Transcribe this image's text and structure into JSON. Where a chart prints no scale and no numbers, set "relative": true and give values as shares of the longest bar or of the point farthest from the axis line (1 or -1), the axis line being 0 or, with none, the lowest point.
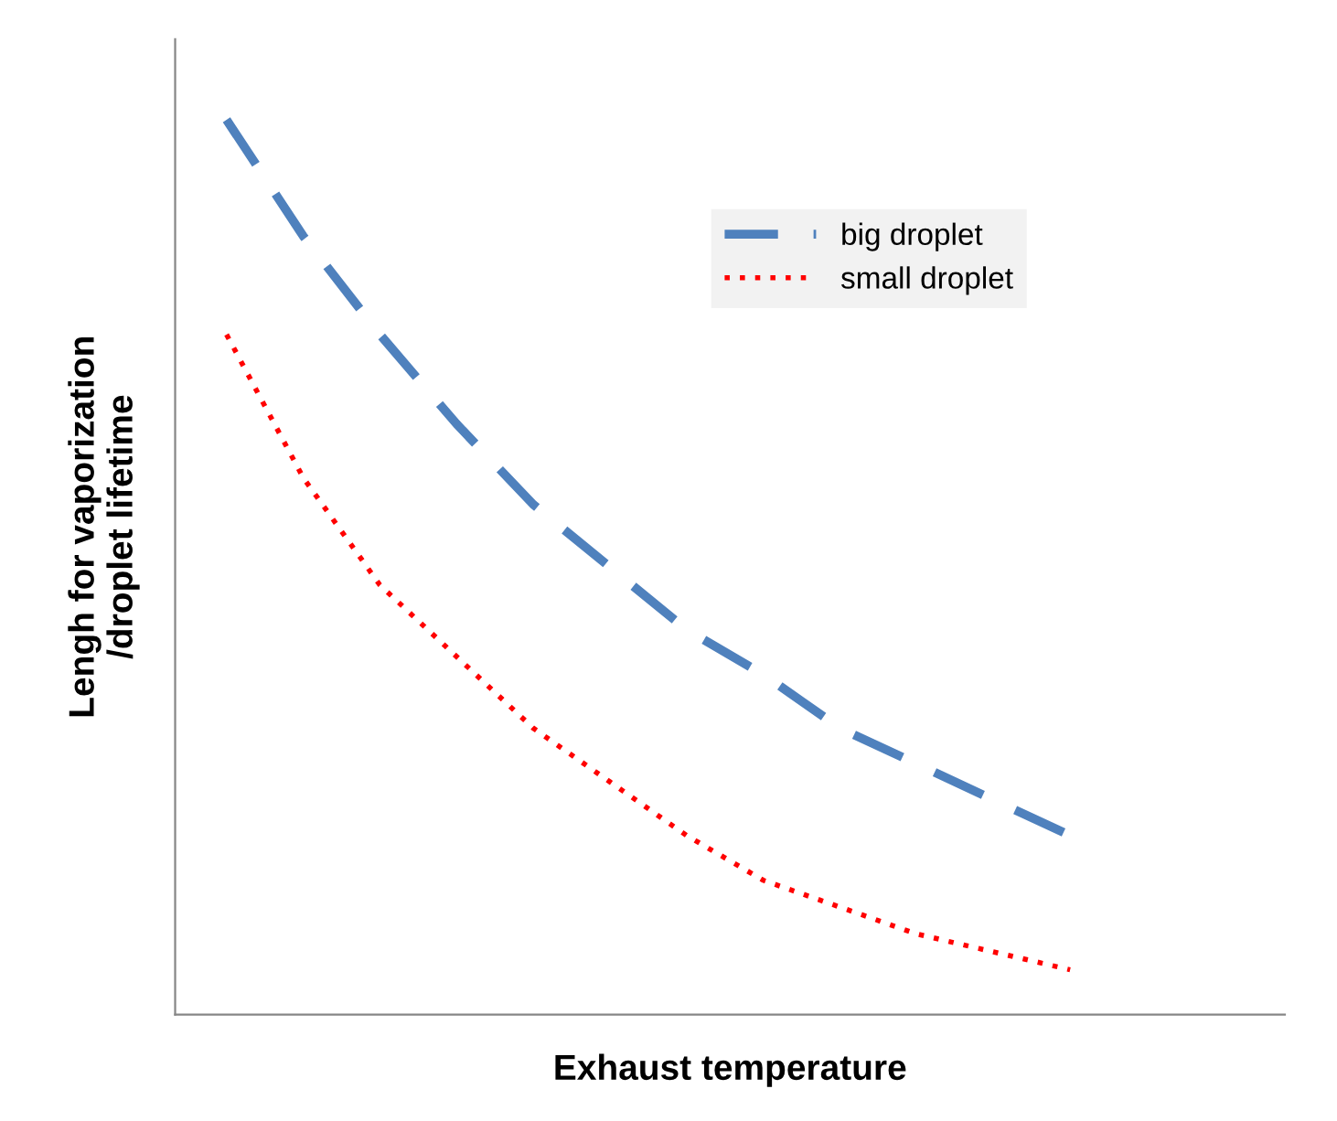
{
  "chart_data": {
    "type": "line",
    "relative": true,
    "xlabel": "Exhaust temperature",
    "ylabel": "Lengh for vaporization\n/droplet lifetime",
    "categories": [
      null,
      null,
      null,
      null,
      null,
      null,
      null,
      null,
      null,
      null,
      null,
      null
    ],
    "series": [
      {
        "name": "big droplet",
        "color": "#4f81bd",
        "line_style": "dashed",
        "values": [
          1.0,
          0.87,
          0.76,
          0.66,
          0.57,
          0.5,
          0.43,
          0.38,
          0.32,
          0.28,
          0.24,
          0.2
        ]
      },
      {
        "name": "small droplet",
        "color": "#ff0000",
        "line_style": "dotted",
        "values": [
          0.76,
          0.6,
          0.48,
          0.4,
          0.32,
          0.26,
          0.2,
          0.15,
          0.12,
          0.09,
          0.07,
          0.05
        ]
      }
    ],
    "legend": "top right",
    "grid": false,
    "marker": "none"
  }
}
